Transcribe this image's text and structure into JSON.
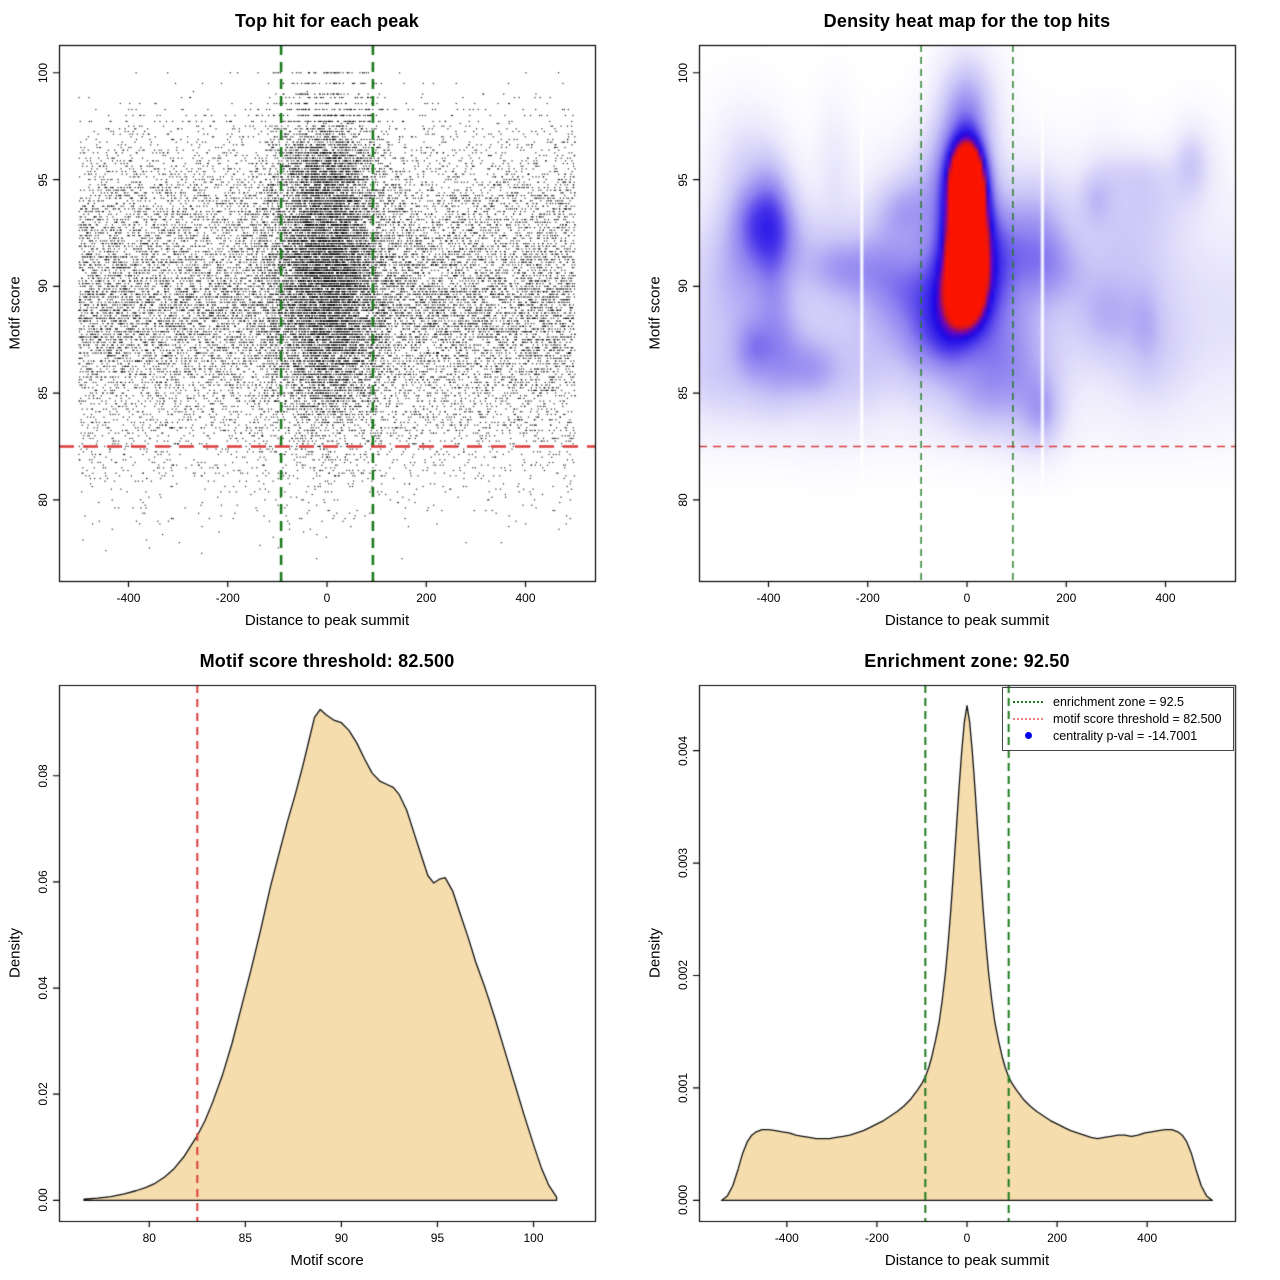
{
  "colors": {
    "green_line": "#1e7b1e",
    "red_line": "#dd3c3c",
    "density_fill": "#f5ddae",
    "curve_stroke": "#111111",
    "point_color": "#000000",
    "legend_dot_blue": "#0000ee",
    "heat_stops": [
      [
        0,
        "#ffffff"
      ],
      [
        0.13,
        "#edebfc"
      ],
      [
        0.3,
        "#c9c3f7"
      ],
      [
        0.48,
        "#8f83f0"
      ],
      [
        0.62,
        "#4b38ea"
      ],
      [
        0.74,
        "#1b08e6"
      ],
      [
        0.84,
        "#6e07b8"
      ],
      [
        0.92,
        "#cf1524"
      ],
      [
        1,
        "#fa1400"
      ]
    ]
  },
  "chart_data": [
    {
      "type": "scatter",
      "title": "Top hit for each peak",
      "xlabel": "Distance to peak summit",
      "ylabel": "Motif score",
      "xlim": [
        -540,
        540
      ],
      "ylim": [
        76.2,
        101.3
      ],
      "xtick_values": [
        -400,
        -200,
        0,
        200,
        400
      ],
      "xtick_labels": [
        "-400",
        "-200",
        "0",
        "200",
        "400"
      ],
      "ytick_values": [
        80,
        85,
        90,
        95,
        100
      ],
      "ytick_labels": [
        "80",
        "85",
        "90",
        "95",
        "100"
      ],
      "annotations": {
        "green_dashed_vlines_x": [
          -92.5,
          92.5
        ],
        "red_dashed_hline_y": 82.5
      },
      "points_model": {
        "seed": 7,
        "n": 26000,
        "x_range": [
          -500,
          500
        ],
        "sigma_central_x": 55,
        "y_mixture": [
          {
            "w": 0.44,
            "mu": 88.8,
            "sd": 2.6
          },
          {
            "w": 0.34,
            "mu": 91.6,
            "sd": 3.0
          },
          {
            "w": 0.12,
            "mu": 95.1,
            "sd": 2.0
          },
          {
            "w": 0.1,
            "mu": 84.2,
            "sd": 2.5
          }
        ]
      }
    },
    {
      "type": "heatmap",
      "title": "Density heat map for the top hits",
      "xlabel": "Distance to peak summit",
      "ylabel": "Motif score",
      "xlim": [
        -540,
        540
      ],
      "ylim": [
        76.2,
        101.3
      ],
      "xtick_values": [
        -400,
        -200,
        0,
        200,
        400
      ],
      "xtick_labels": [
        "-400",
        "-200",
        "0",
        "200",
        "400"
      ],
      "ytick_values": [
        80,
        85,
        90,
        95,
        100
      ],
      "ytick_labels": [
        "80",
        "85",
        "90",
        "95",
        "100"
      ],
      "annotations": {
        "green_dashed_vlines_x": [
          -92.5,
          92.5
        ],
        "red_dashed_hline_y": 82.5,
        "white_gap_x": [
          -212,
          152
        ]
      },
      "density_model": {
        "seed": 11,
        "blob_count": 55,
        "mist": {
          "amp": 0.17,
          "cy": 88.8,
          "sy": 5.5
        },
        "halo": {
          "amp": 0.34,
          "sx": 130,
          "cy": 90.5,
          "sy": 4.6
        },
        "core": {
          "amp": 1.15,
          "sx": 36,
          "cy": 92.4,
          "sy": 3.9
        },
        "core_top": {
          "amp": 0.3,
          "sx": 30,
          "cy": 95.2,
          "sy": 2.0
        },
        "top_bulge": {
          "amp": 0.38,
          "sx": 60,
          "cy": 98.3,
          "sy": 2.8
        },
        "fade_y_start": 79.3,
        "fade_y_len": 3.2
      }
    },
    {
      "type": "area",
      "title": "Motif score threshold: 82.500",
      "xlabel": "Motif score",
      "ylabel": "Density",
      "xlim": [
        75.3,
        103.2
      ],
      "ylim": [
        -0.0039,
        0.0971
      ],
      "xtick_values": [
        80,
        85,
        90,
        95,
        100
      ],
      "xtick_labels": [
        "80",
        "85",
        "90",
        "95",
        "100"
      ],
      "ytick_values": [
        0,
        0.02,
        0.04,
        0.06,
        0.08
      ],
      "ytick_labels": [
        "0.00",
        "0.02",
        "0.04",
        "0.06",
        "0.08"
      ],
      "annotations": {
        "red_dashed_vline_x": 82.5
      },
      "curve": {
        "x": [
          76.6,
          77.3,
          78.0,
          78.7,
          79.3,
          79.8,
          80.3,
          80.8,
          81.3,
          81.8,
          82.2,
          82.5,
          82.9,
          83.3,
          83.8,
          84.3,
          84.8,
          85.3,
          85.8,
          86.3,
          86.8,
          87.2,
          87.6,
          88.0,
          88.3,
          88.6,
          88.9,
          89.2,
          89.6,
          90.0,
          90.4,
          90.8,
          91.2,
          91.6,
          92.0,
          92.4,
          92.7,
          93.0,
          93.4,
          93.8,
          94.2,
          94.5,
          94.8,
          95.1,
          95.4,
          95.8,
          96.2,
          96.6,
          97.0,
          97.5,
          98.0,
          98.5,
          99.0,
          99.5,
          100.0,
          100.4,
          100.8,
          101.2
        ],
        "y": [
          0.0002,
          0.0004,
          0.0007,
          0.0012,
          0.0018,
          0.0024,
          0.0032,
          0.0044,
          0.006,
          0.0082,
          0.0105,
          0.0122,
          0.015,
          0.0185,
          0.0235,
          0.0295,
          0.0365,
          0.0435,
          0.051,
          0.059,
          0.066,
          0.0715,
          0.0765,
          0.082,
          0.0865,
          0.091,
          0.0925,
          0.0915,
          0.0905,
          0.09,
          0.0885,
          0.0862,
          0.0832,
          0.0805,
          0.079,
          0.0783,
          0.0778,
          0.0765,
          0.0735,
          0.069,
          0.0645,
          0.0612,
          0.0598,
          0.0605,
          0.0608,
          0.0582,
          0.0538,
          0.0495,
          0.0448,
          0.0398,
          0.0342,
          0.0282,
          0.0222,
          0.0162,
          0.0105,
          0.0062,
          0.0028,
          0.0006
        ]
      }
    },
    {
      "type": "area",
      "title": "Enrichment zone: 92.50",
      "xlabel": "Distance to peak summit",
      "ylabel": "Density",
      "xlim": [
        -595,
        595
      ],
      "ylim": [
        -0.000183,
        0.004583
      ],
      "xtick_values": [
        -400,
        -200,
        0,
        200,
        400
      ],
      "xtick_labels": [
        "-400",
        "-200",
        "0",
        "200",
        "400"
      ],
      "ytick_values": [
        0,
        0.001,
        0.002,
        0.003,
        0.004
      ],
      "ytick_labels": [
        "0.000",
        "0.001",
        "0.002",
        "0.003",
        "0.004"
      ],
      "annotations": {
        "green_dashed_vlines_x": [
          -92.5,
          92.5
        ]
      },
      "legend": {
        "position": "topright",
        "items": [
          {
            "key": "green-dotted-line",
            "label": "enrichment zone = 92.5"
          },
          {
            "key": "red-dotted-line",
            "label": "motif score threshold = 82.500"
          },
          {
            "key": "blue-dot",
            "label": "centrality p-val = -14.7001"
          }
        ]
      },
      "curve": {
        "x": [
          -545,
          -532,
          -520,
          -508,
          -498,
          -488,
          -478,
          -468,
          -455,
          -440,
          -425,
          -410,
          -395,
          -380,
          -365,
          -350,
          -335,
          -320,
          -305,
          -290,
          -275,
          -260,
          -245,
          -230,
          -215,
          -200,
          -185,
          -170,
          -155,
          -140,
          -125,
          -110,
          -100,
          -92.5,
          -85,
          -78,
          -70,
          -62,
          -55,
          -48,
          -42,
          -36,
          -30,
          -24,
          -18,
          -12,
          -6,
          0,
          6,
          12,
          18,
          24,
          30,
          36,
          42,
          48,
          55,
          62,
          70,
          78,
          85,
          92.5,
          100,
          110,
          125,
          140,
          155,
          170,
          185,
          200,
          215,
          230,
          245,
          260,
          275,
          290,
          305,
          320,
          335,
          350,
          365,
          380,
          395,
          410,
          425,
          440,
          455,
          468,
          478,
          488,
          498,
          508,
          520,
          532,
          545
        ],
        "y": [
          0,
          4e-05,
          0.00013,
          0.00028,
          0.00042,
          0.00052,
          0.00058,
          0.00061,
          0.00063,
          0.00063,
          0.00062,
          0.00061,
          0.0006,
          0.00058,
          0.00057,
          0.00056,
          0.00055,
          0.00055,
          0.00055,
          0.00056,
          0.00057,
          0.00058,
          0.0006,
          0.00062,
          0.00065,
          0.00068,
          0.00071,
          0.00075,
          0.00079,
          0.00084,
          0.0009,
          0.00098,
          0.00104,
          0.0011,
          0.00118,
          0.00128,
          0.00142,
          0.00158,
          0.00178,
          0.00202,
          0.00228,
          0.00258,
          0.00292,
          0.00328,
          0.00365,
          0.00398,
          0.00425,
          0.0044,
          0.00425,
          0.00398,
          0.00365,
          0.00328,
          0.00292,
          0.00258,
          0.00228,
          0.00202,
          0.00178,
          0.00158,
          0.00142,
          0.00128,
          0.00118,
          0.0011,
          0.00104,
          0.00098,
          0.0009,
          0.00084,
          0.00079,
          0.00075,
          0.00071,
          0.00068,
          0.00065,
          0.00062,
          0.0006,
          0.00058,
          0.00056,
          0.00055,
          0.00056,
          0.00057,
          0.00058,
          0.00058,
          0.00057,
          0.00058,
          0.0006,
          0.00061,
          0.00062,
          0.00063,
          0.00063,
          0.00061,
          0.00058,
          0.00052,
          0.00042,
          0.00028,
          0.00013,
          4e-05,
          0
        ]
      }
    }
  ]
}
